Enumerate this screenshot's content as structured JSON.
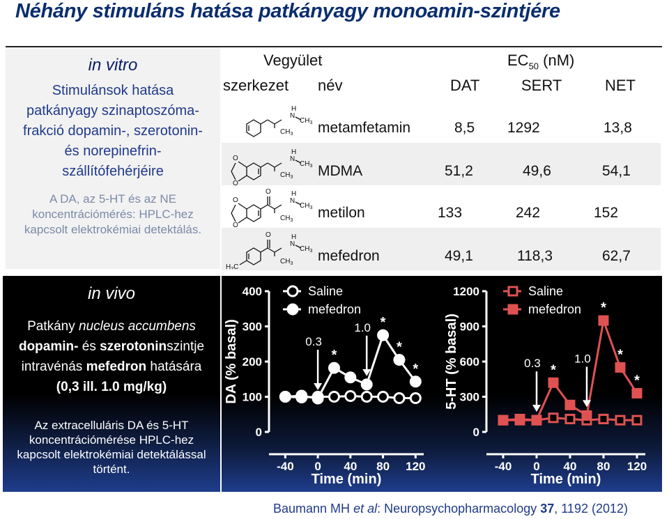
{
  "title": "Néhány stimuláns hatása patkányagy monoamin-szintjére",
  "in_vitro": {
    "heading": "in vitro",
    "lines": [
      "Stimulánsok hatása",
      "patkányagy szinaptoszóma-",
      "frakció dopamin-, szerotonin-",
      "és norepinefrin-",
      "szállítófehérjéire"
    ],
    "method_lines": [
      "A DA, az 5-HT és az NE",
      "koncentrációmérés: HPLC-hez",
      "kapcsolt elektrokémiai detektálás."
    ]
  },
  "table": {
    "header_compound": "Vegyület",
    "header_ec50": "EC",
    "header_ec50_sub": "50",
    "header_ec50_unit": "(nM)",
    "col_structure": "szerkezet",
    "col_name": "név",
    "col_dat": "DAT",
    "col_sert": "SERT",
    "col_net": "NET",
    "rows": [
      {
        "name": "metamfetamin",
        "dat": "8,5",
        "sert": "1292",
        "net": "13,8"
      },
      {
        "name": "MDMA",
        "dat": "51,2",
        "sert": "49,6",
        "net": "54,1"
      },
      {
        "name": "metilon",
        "dat": "133",
        "sert": "242",
        "net": "152"
      },
      {
        "name": "mefedron",
        "dat": "49,1",
        "sert": "118,3",
        "net": "62,7"
      }
    ],
    "chem": {
      "H": "H",
      "N": "N",
      "O": "O",
      "C": "C",
      "CH3": "CH",
      "sub3": "3"
    }
  },
  "in_vivo": {
    "heading": "in vivo",
    "p_plain1": "Patkány ",
    "p_italic": "nucleus accumbens",
    "p_bold1": "dopamin-",
    "p_plain2": " és ",
    "p_bold2": "szerotonin",
    "p_plain3": "szintje",
    "p_plain4": "intravénás ",
    "p_bold3": "mefedron",
    "p_plain5": " hatására",
    "p_bold4": "(0,3 ill. 1.0 mg/kg)",
    "method_lines": [
      "Az extracelluláris DA és 5-HT",
      "koncentrációmérése HPLC-hez",
      "kapcsolt elektrokémiai detektálással",
      "történt."
    ]
  },
  "chart_data": [
    {
      "type": "line",
      "ylabel": "DA (% basal)",
      "xlabel": "Time (min)",
      "ylim": [
        0,
        400
      ],
      "yticks": [
        "0",
        "100",
        "200",
        "300",
        "400"
      ],
      "xlim": [
        -60,
        130
      ],
      "xticks": [
        "-40",
        "0",
        "40",
        "80",
        "120"
      ],
      "color": "#ffffff",
      "legend": [
        "Saline",
        "mefedron"
      ],
      "series": [
        {
          "name": "Saline",
          "marker": "open-circle",
          "x": [
            -40,
            -20,
            0,
            20,
            40,
            60,
            80,
            100,
            120
          ],
          "y": [
            100,
            98,
            100,
            100,
            102,
            100,
            100,
            96,
            96
          ]
        },
        {
          "name": "mefedron",
          "marker": "filled-circle",
          "x": [
            -40,
            -20,
            0,
            20,
            40,
            60,
            80,
            100,
            120
          ],
          "y": [
            100,
            103,
            95,
            182,
            155,
            135,
            275,
            205,
            143
          ]
        }
      ],
      "annotations": [
        {
          "text": "0.3",
          "type": "arrow",
          "x": 0
        },
        {
          "text": "1.0",
          "type": "arrow",
          "x": 60
        },
        {
          "text": "*",
          "type": "star",
          "x": 20,
          "y": 182
        },
        {
          "text": "*",
          "type": "star",
          "x": 80,
          "y": 275
        },
        {
          "text": "*",
          "type": "star",
          "x": 100,
          "y": 205
        },
        {
          "text": "*",
          "type": "star",
          "x": 120,
          "y": 143
        }
      ]
    },
    {
      "type": "line",
      "ylabel": "5-HT (% basal)",
      "xlabel": "Time (min)",
      "ylim": [
        0,
        1200
      ],
      "yticks": [
        "0",
        "300",
        "600",
        "900",
        "1200"
      ],
      "xlim": [
        -60,
        130
      ],
      "xticks": [
        "-40",
        "0",
        "40",
        "80",
        "120"
      ],
      "color": "#e05252",
      "legend": [
        "Saline",
        "mefedron"
      ],
      "series": [
        {
          "name": "Saline",
          "marker": "open-square",
          "x": [
            -40,
            -20,
            0,
            20,
            40,
            60,
            80,
            100,
            120
          ],
          "y": [
            100,
            100,
            100,
            120,
            110,
            100,
            110,
            100,
            100
          ]
        },
        {
          "name": "mefedron",
          "marker": "filled-square",
          "x": [
            -40,
            -20,
            0,
            20,
            40,
            60,
            80,
            100,
            120
          ],
          "y": [
            100,
            110,
            100,
            420,
            230,
            140,
            950,
            550,
            330
          ]
        }
      ],
      "annotations": [
        {
          "text": "0.3",
          "type": "arrow",
          "x": 0
        },
        {
          "text": "1.0",
          "type": "arrow",
          "x": 60
        },
        {
          "text": "*",
          "type": "star",
          "x": 20,
          "y": 420
        },
        {
          "text": "*",
          "type": "star",
          "x": 80,
          "y": 950
        },
        {
          "text": "*",
          "type": "star",
          "x": 100,
          "y": 550
        },
        {
          "text": "*",
          "type": "star",
          "x": 120,
          "y": 330
        }
      ]
    }
  ],
  "citation": {
    "author": "Baumann MH ",
    "etal": "et al",
    "journal": ": Neuropsychopharmacology ",
    "volume": "37",
    "pages": ", 1192 (2012)"
  }
}
